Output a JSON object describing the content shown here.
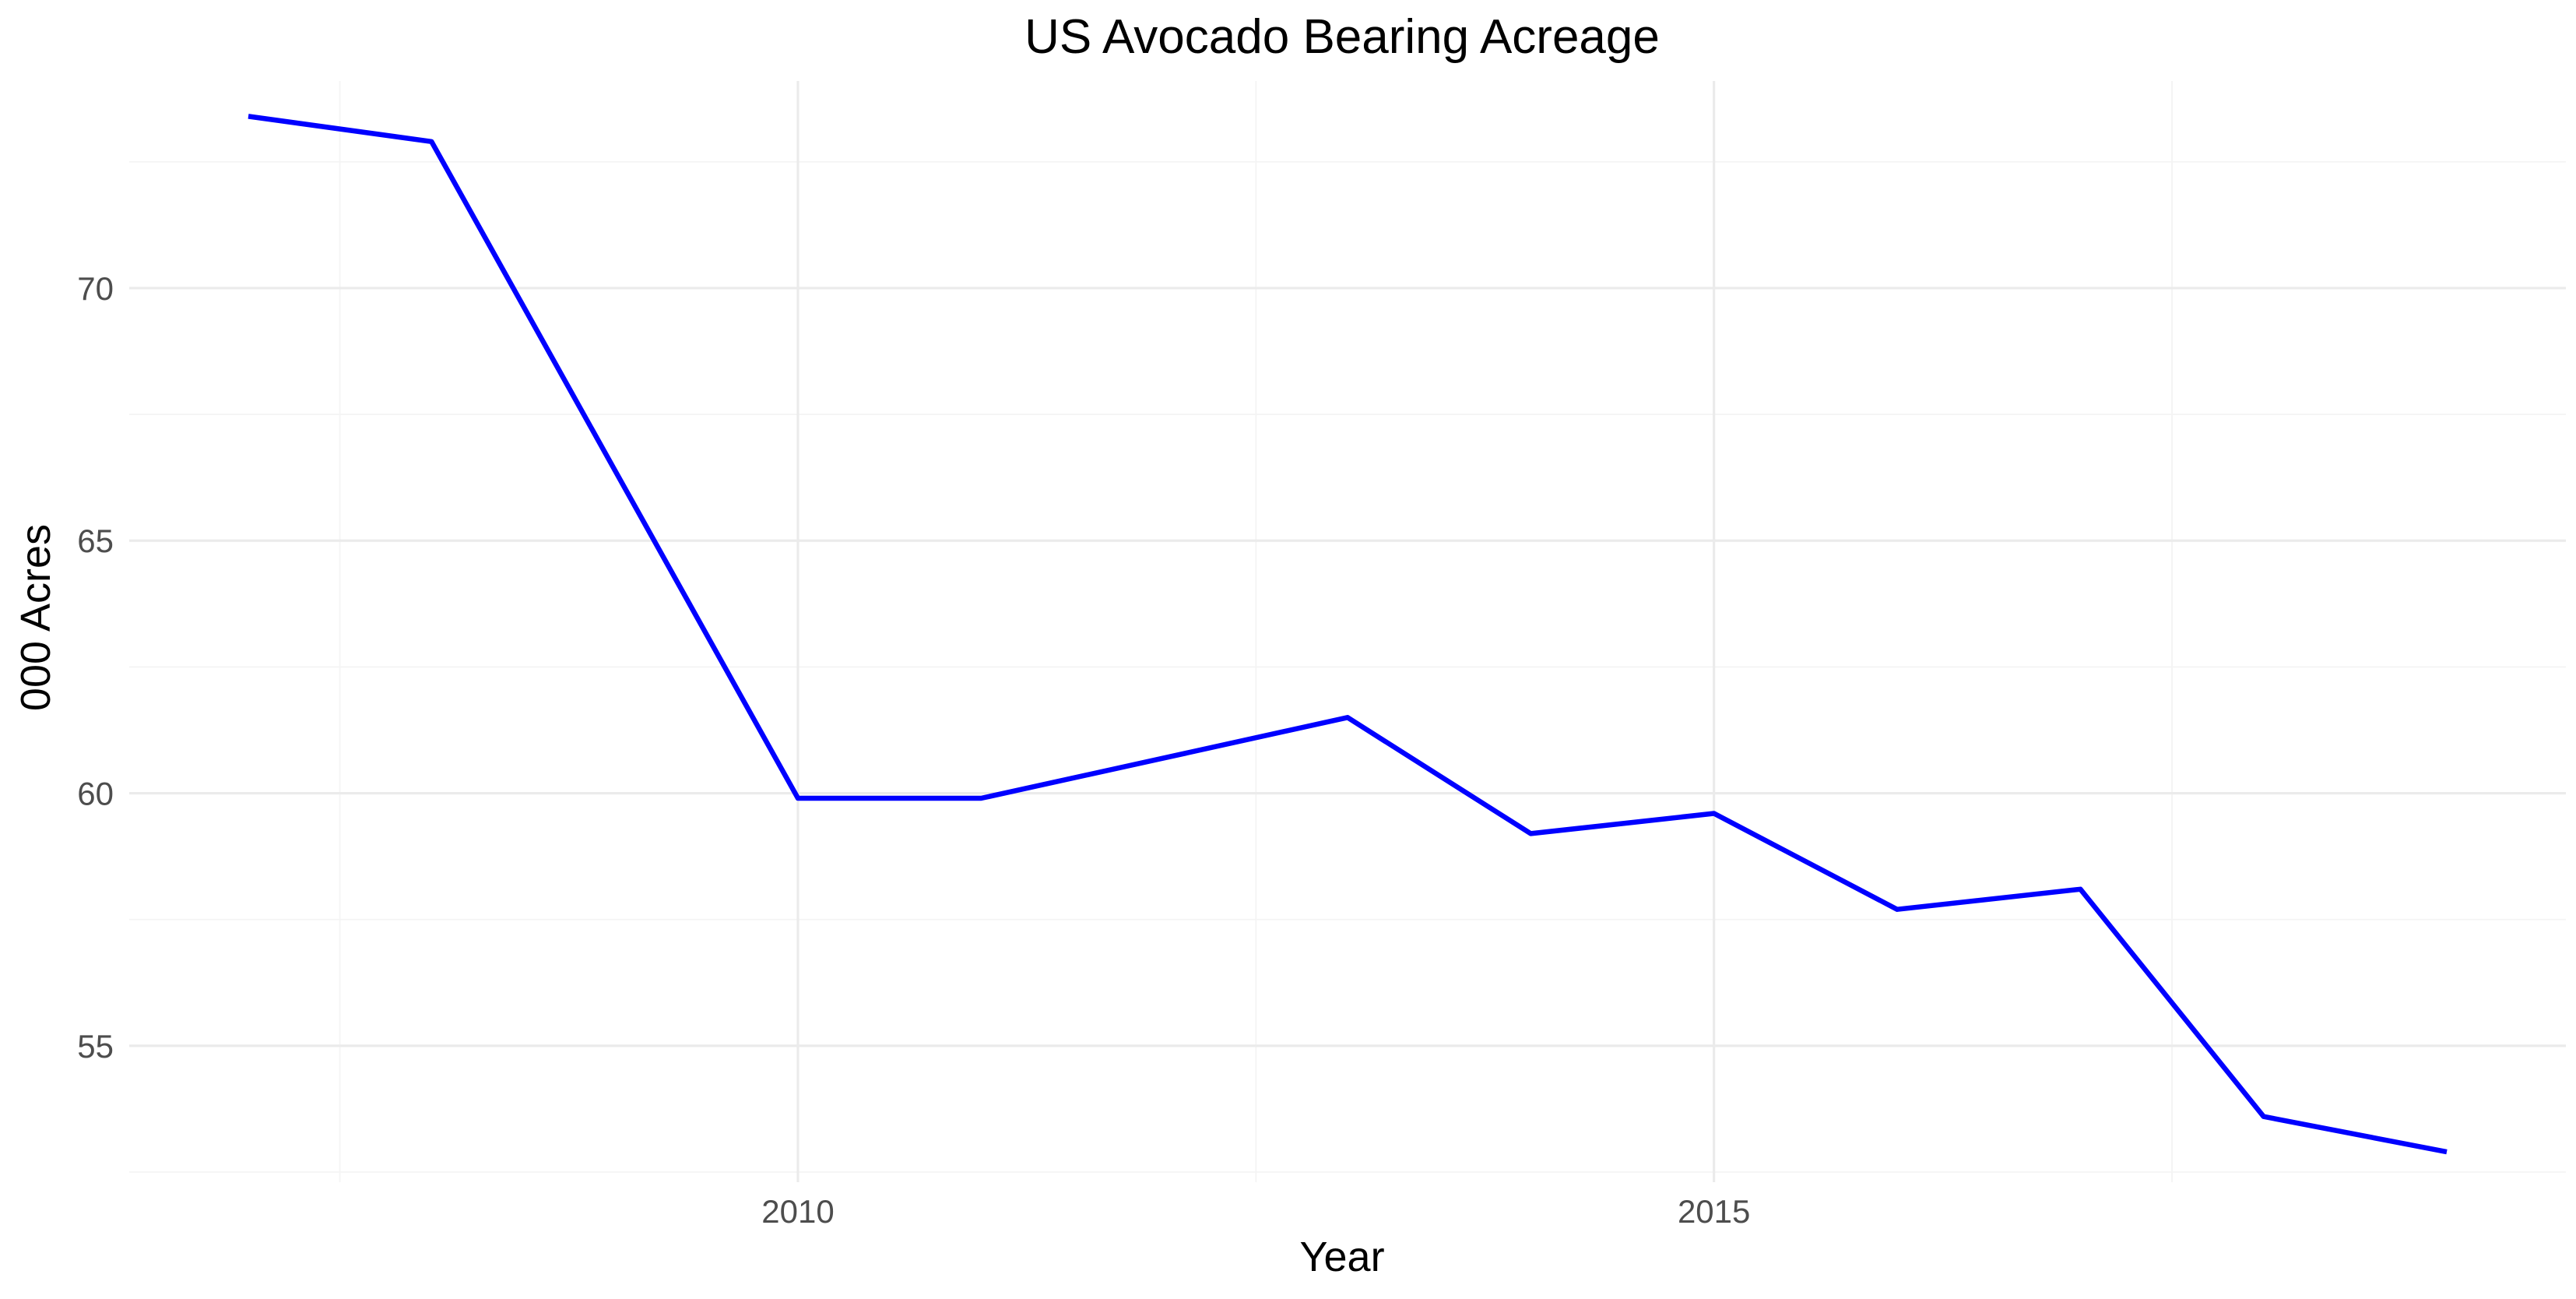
{
  "chart_data": {
    "type": "line",
    "title": "US Avocado Bearing Acreage",
    "xlabel": "Year",
    "ylabel": "000 Acres",
    "x": [
      2007,
      2008,
      2009,
      2010,
      2011,
      2012,
      2013,
      2014,
      2015,
      2016,
      2017,
      2018,
      2019
    ],
    "series": [
      {
        "values": [
          73.4,
          72.9,
          66.4,
          59.9,
          59.9,
          60.7,
          61.5,
          59.2,
          59.6,
          57.7,
          58.1,
          53.6,
          52.9
        ],
        "color": "#0000ff"
      }
    ],
    "xlim": [
      2006.35,
      2019.65
    ],
    "ylim": [
      52.3,
      74.1
    ],
    "x_ticks": [
      2010,
      2015
    ],
    "x_tick_labels": [
      "2010",
      "2015"
    ],
    "x_minor_ticks": [
      2007.5,
      2012.5,
      2017.5
    ],
    "y_ticks": [
      55,
      60,
      65,
      70
    ],
    "y_tick_labels": [
      "55",
      "60",
      "65",
      "70"
    ],
    "y_minor_ticks": [
      52.5,
      57.5,
      62.5,
      67.5,
      72.5
    ],
    "grid": true,
    "legend": "none",
    "background": "#ffffff"
  }
}
